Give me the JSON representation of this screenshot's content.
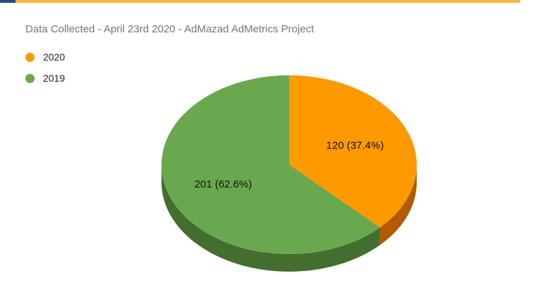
{
  "chart_data": {
    "type": "pie",
    "title": "Data Collected - April 23rd 2020 - AdMazad AdMetrics Project",
    "legend_position": "top-left",
    "series": [
      {
        "name": "2020",
        "value": 120,
        "percent": 37.4,
        "label": "120 (37.4%)",
        "color": "#ff9900"
      },
      {
        "name": "2019",
        "value": 201,
        "percent": 62.6,
        "label": "201 (62.6%)",
        "color": "#6aa84f"
      }
    ],
    "side_colors": {
      "2020": "#b35b00",
      "2019": "#436e2f"
    },
    "style": "3d"
  }
}
